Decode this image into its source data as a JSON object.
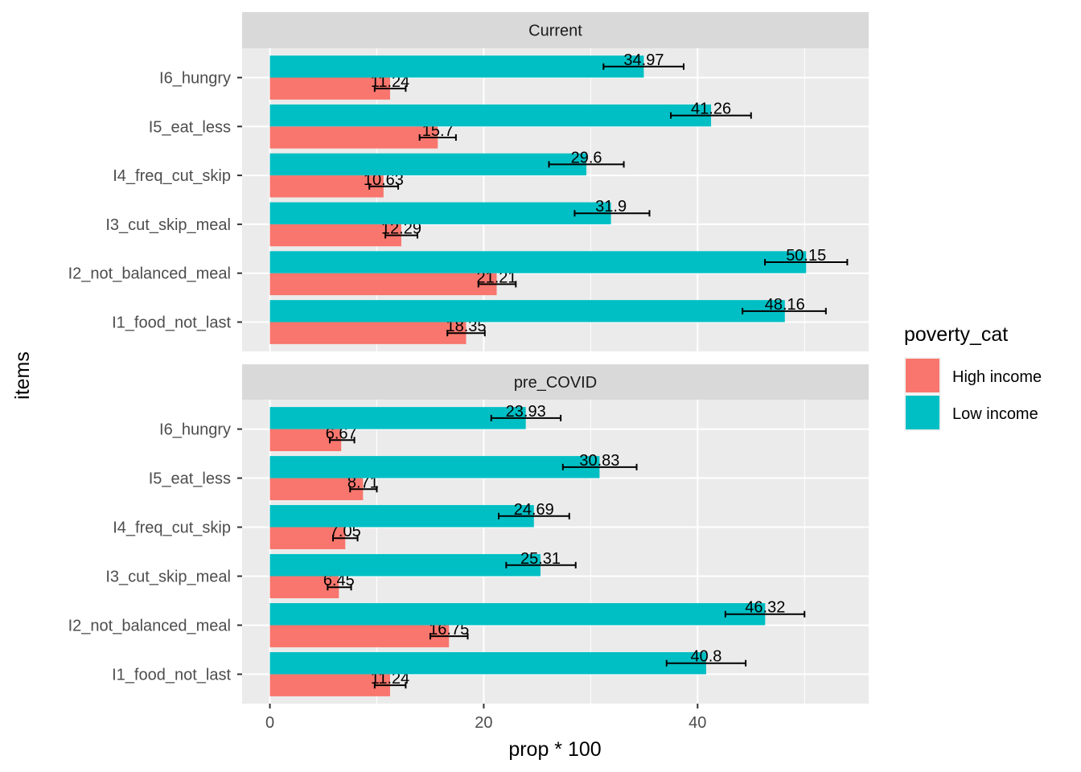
{
  "chart_data": {
    "type": "bar",
    "orientation": "horizontal",
    "xlabel": "prop * 100",
    "ylabel": "items",
    "xlim": [
      -2.6,
      56
    ],
    "xticks": [
      0,
      20,
      40
    ],
    "grid": true,
    "legend": {
      "title": "poverty_cat",
      "position": "right",
      "entries": [
        {
          "name": "High income",
          "color": "#F8766D"
        },
        {
          "name": "Low income",
          "color": "#00BFC4"
        }
      ]
    },
    "categories": [
      "I6_hungry",
      "I5_eat_less",
      "I4_freq_cut_skip",
      "I3_cut_skip_meal",
      "I2_not_balanced_meal",
      "I1_food_not_last"
    ],
    "panels": [
      {
        "label": "Current",
        "series": [
          {
            "name": "High income",
            "values": [
              11.24,
              15.7,
              10.63,
              12.29,
              21.21,
              18.35
            ],
            "labels": [
              "11.24",
              "15.7",
              "10.63",
              "12.29",
              "21.21",
              "18.35"
            ],
            "err_low": [
              9.8,
              14.0,
              9.3,
              10.8,
              19.5,
              16.6
            ],
            "err_high": [
              12.7,
              17.4,
              12.0,
              13.8,
              23.0,
              20.1
            ]
          },
          {
            "name": "Low income",
            "values": [
              34.97,
              41.26,
              29.6,
              31.9,
              50.15,
              48.16
            ],
            "labels": [
              "34.97",
              "41.26",
              "29.6",
              "31.9",
              "50.15",
              "48.16"
            ],
            "err_low": [
              31.2,
              37.5,
              26.1,
              28.5,
              46.3,
              44.2
            ],
            "err_high": [
              38.7,
              45.0,
              33.1,
              35.5,
              54.0,
              52.0
            ]
          }
        ]
      },
      {
        "label": "pre_COVID",
        "series": [
          {
            "name": "High income",
            "values": [
              6.67,
              8.71,
              7.05,
              6.45,
              16.75,
              11.24
            ],
            "labels": [
              "6.67",
              "8.71",
              "7.05",
              "6.45",
              "16.75",
              "11.24"
            ],
            "err_low": [
              5.6,
              7.5,
              5.9,
              5.4,
              15.0,
              9.8
            ],
            "err_high": [
              7.9,
              10.0,
              8.2,
              7.6,
              18.5,
              12.7
            ]
          },
          {
            "name": "Low income",
            "values": [
              23.93,
              30.83,
              24.69,
              25.31,
              46.32,
              40.8
            ],
            "labels": [
              "23.93",
              "30.83",
              "24.69",
              "25.31",
              "46.32",
              "40.8"
            ],
            "err_low": [
              20.7,
              27.4,
              21.4,
              22.1,
              42.6,
              37.1
            ],
            "err_high": [
              27.2,
              34.3,
              28.0,
              28.6,
              50.0,
              44.5
            ]
          }
        ]
      }
    ]
  }
}
